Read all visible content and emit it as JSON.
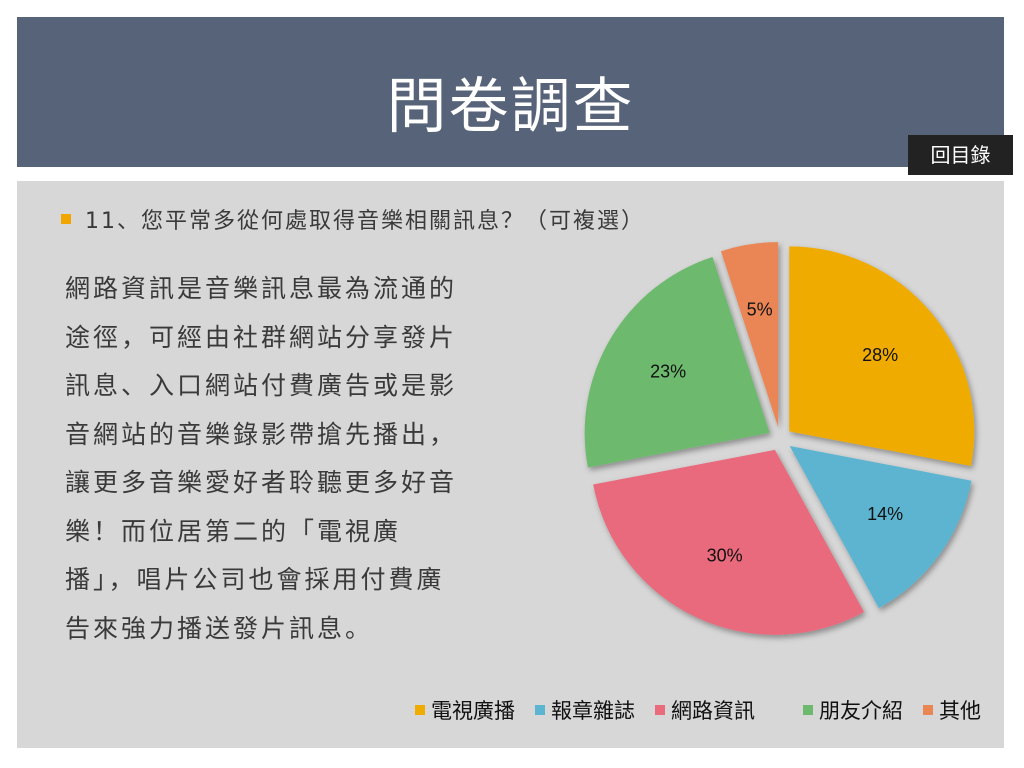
{
  "header": {
    "title": "問卷調查",
    "toc_label": "回目錄"
  },
  "question": "11、您平常多從何處取得音樂相關訊息？（可複選）",
  "body_text": "網路資訊是音樂訊息最為流通的途徑，可經由社群網站分享發片訊息、入口網站付費廣告或是影音網站的音樂錄影帶搶先播出，讓更多音樂愛好者聆聽更多好音樂！而位居第二的「電視廣播」，唱片公司也會採用付費廣告來強力播送發片訊息。",
  "colors": {
    "header_bg": "#576379",
    "content_bg": "#d7d7d7",
    "accent": "#f0a500"
  },
  "chart_data": {
    "type": "pie",
    "categories": [
      "電視廣播",
      "報章雜誌",
      "網路資訊",
      "朋友介紹",
      "其他"
    ],
    "values": [
      28,
      14,
      30,
      23,
      5
    ],
    "labels": [
      "28%",
      "14%",
      "30%",
      "23%",
      "5%"
    ],
    "colors": [
      "#f0ab00",
      "#5bb4d0",
      "#e96b7c",
      "#6db96d",
      "#ea8654"
    ],
    "exploded": true,
    "legend": "bottom"
  }
}
